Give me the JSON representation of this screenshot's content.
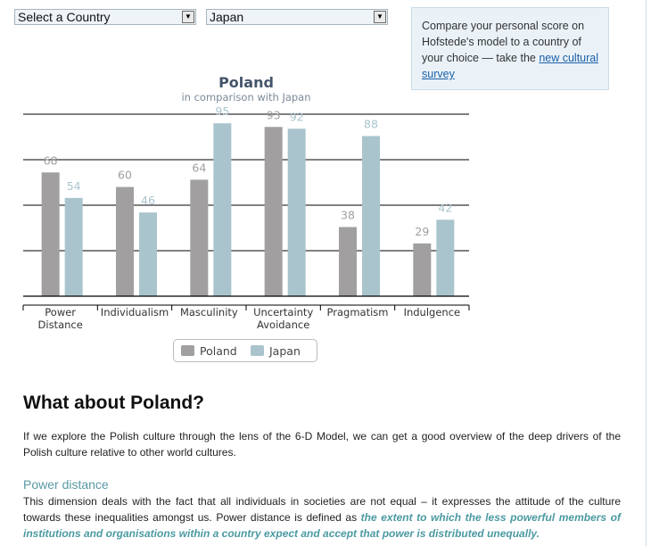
{
  "selectors": {
    "country": "Select a Country",
    "compare": "Japan"
  },
  "infobox": {
    "text": "Compare your personal score on Hofstede's model to a country of your choice — take the ",
    "link": "new cultural survey"
  },
  "colors": {
    "poland": "#a19fa0",
    "japan": "#a9c4cd"
  },
  "chart_data": {
    "type": "bar",
    "title": "Poland",
    "subtitle": "in comparison with Japan",
    "categories": [
      "Power Distance",
      "Individualism",
      "Masculinity",
      "Uncertainty Avoidance",
      "Pragmatism",
      "Indulgence"
    ],
    "series": [
      {
        "name": "Poland",
        "values": [
          68,
          60,
          64,
          93,
          38,
          29
        ]
      },
      {
        "name": "Japan",
        "values": [
          54,
          46,
          95,
          92,
          88,
          42
        ]
      }
    ],
    "ylim": [
      0,
      100
    ],
    "grid": true,
    "legend": "bottom"
  },
  "article": {
    "heading": "What about Poland?",
    "intro": "If we explore the Polish culture through the lens of the 6-D Model, we can get a good overview of the deep drivers of the Polish culture relative to other world cultures.",
    "section_title": "Power distance",
    "section_text": "This dimension deals with the fact that all individuals in societies are not equal – it expresses the attitude of the culture towards these inequalities amongst us. Power distance is defined as ",
    "section_emphasis": "the extent to which the less powerful members of institutions and organisations within a country expect and accept that power is distributed unequally."
  }
}
